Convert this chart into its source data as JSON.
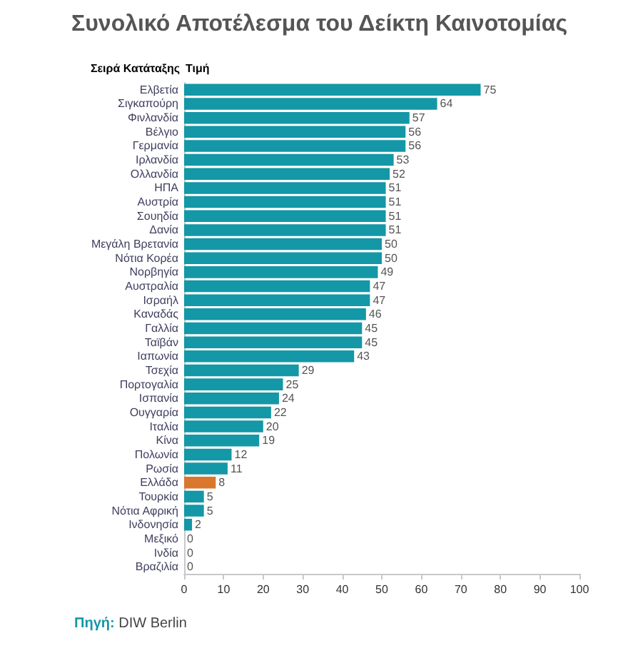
{
  "chart_data": {
    "type": "bar",
    "orientation": "horizontal",
    "title": "Συνολικό Αποτέλεσμα του Δείκτη Καινοτομίας",
    "ylabel": "Σειρά Κατάταξης",
    "xlabel": "Τιμή",
    "categories": [
      "Ελβετία",
      "Σιγκαπούρη",
      "Φινλανδία",
      "Βέλγιο",
      "Γερμανία",
      "Ιρλανδία",
      "Ολλανδία",
      "ΗΠΑ",
      "Αυστρία",
      "Σουηδία",
      "Δανία",
      "Μεγάλη Βρετανία",
      "Νότια Κορέα",
      "Νορβηγία",
      "Αυστραλία",
      "Ισραήλ",
      "Καναδάς",
      "Γαλλία",
      "Ταϊβάν",
      "Ιαπωνία",
      "Τσεχία",
      "Πορτογαλία",
      "Ισπανία",
      "Ουγγαρία",
      "Ιταλία",
      "Κίνα",
      "Πολωνία",
      "Ρωσία",
      "Ελλάδα",
      "Τουρκία",
      "Νότια Αφρική",
      "Ινδονησία",
      "Μεξικό",
      "Ινδία",
      "Βραζιλία"
    ],
    "values": [
      75,
      64,
      57,
      56,
      56,
      53,
      52,
      51,
      51,
      51,
      51,
      50,
      50,
      49,
      47,
      47,
      46,
      45,
      45,
      43,
      29,
      25,
      24,
      22,
      20,
      19,
      12,
      11,
      8,
      5,
      5,
      2,
      0,
      0,
      0
    ],
    "colors": [
      "#1497a6",
      "#1497a6",
      "#1497a6",
      "#1497a6",
      "#1497a6",
      "#1497a6",
      "#1497a6",
      "#1497a6",
      "#1497a6",
      "#1497a6",
      "#1497a6",
      "#1497a6",
      "#1497a6",
      "#1497a6",
      "#1497a6",
      "#1497a6",
      "#1497a6",
      "#1497a6",
      "#1497a6",
      "#1497a6",
      "#1497a6",
      "#1497a6",
      "#1497a6",
      "#1497a6",
      "#1497a6",
      "#1497a6",
      "#1497a6",
      "#1497a6",
      "#d9782d",
      "#1497a6",
      "#1497a6",
      "#1497a6",
      "#1497a6",
      "#1497a6",
      "#1497a6"
    ],
    "xlim": [
      0,
      100
    ],
    "xticks": [
      0,
      10,
      20,
      30,
      40,
      50,
      60,
      70,
      80,
      90,
      100
    ],
    "grid": false,
    "data_labels": true,
    "annotations": [
      "Πηγή: DIW Berlin"
    ]
  }
}
